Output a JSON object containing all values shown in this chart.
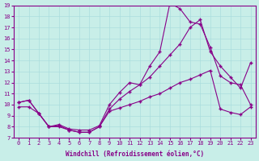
{
  "background_color": "#c8eee8",
  "grid_color": "#aadddd",
  "line_color": "#880088",
  "xlabel": "Windchill (Refroidissement éolien,°C)",
  "xlim": [
    -0.5,
    23.5
  ],
  "ylim": [
    7,
    19
  ],
  "yticks": [
    7,
    8,
    9,
    10,
    11,
    12,
    13,
    14,
    15,
    16,
    17,
    18,
    19
  ],
  "xticks": [
    0,
    1,
    2,
    3,
    4,
    5,
    6,
    7,
    8,
    9,
    10,
    11,
    12,
    13,
    14,
    15,
    16,
    17,
    18,
    19,
    20,
    21,
    22,
    23
  ],
  "curve1_x": [
    0,
    1,
    2,
    3,
    4,
    5,
    6,
    7,
    8,
    9,
    10,
    11,
    12,
    13,
    14,
    15,
    16,
    17,
    18,
    19,
    20,
    21,
    22,
    23
  ],
  "curve1_y": [
    10.2,
    10.4,
    9.2,
    8.0,
    8.2,
    7.8,
    7.7,
    7.7,
    8.1,
    10.0,
    11.1,
    12.0,
    11.8,
    13.5,
    14.8,
    19.2,
    18.7,
    17.5,
    17.3,
    15.2,
    12.6,
    12.0,
    11.8,
    10.0
  ],
  "curve2_x": [
    0,
    1,
    2,
    3,
    4,
    5,
    6,
    7,
    8,
    9,
    10,
    11,
    12,
    13,
    14,
    15,
    16,
    17,
    18,
    19,
    20,
    21,
    22,
    23
  ],
  "curve2_y": [
    10.2,
    10.4,
    9.2,
    8.0,
    8.1,
    7.7,
    7.5,
    7.5,
    8.0,
    9.6,
    10.5,
    11.2,
    11.8,
    12.5,
    13.5,
    14.5,
    15.5,
    17.0,
    17.7,
    14.8,
    13.5,
    12.5,
    11.5,
    13.8
  ],
  "curve3_x": [
    0,
    1,
    2,
    3,
    4,
    5,
    6,
    7,
    8,
    9,
    10,
    11,
    12,
    13,
    14,
    15,
    16,
    17,
    18,
    19,
    20,
    21,
    22,
    23
  ],
  "curve3_y": [
    9.8,
    9.8,
    9.2,
    8.0,
    8.0,
    7.7,
    7.5,
    7.5,
    8.0,
    9.4,
    9.7,
    10.0,
    10.3,
    10.7,
    11.0,
    11.5,
    12.0,
    12.3,
    12.7,
    13.1,
    9.6,
    9.3,
    9.1,
    9.8
  ]
}
